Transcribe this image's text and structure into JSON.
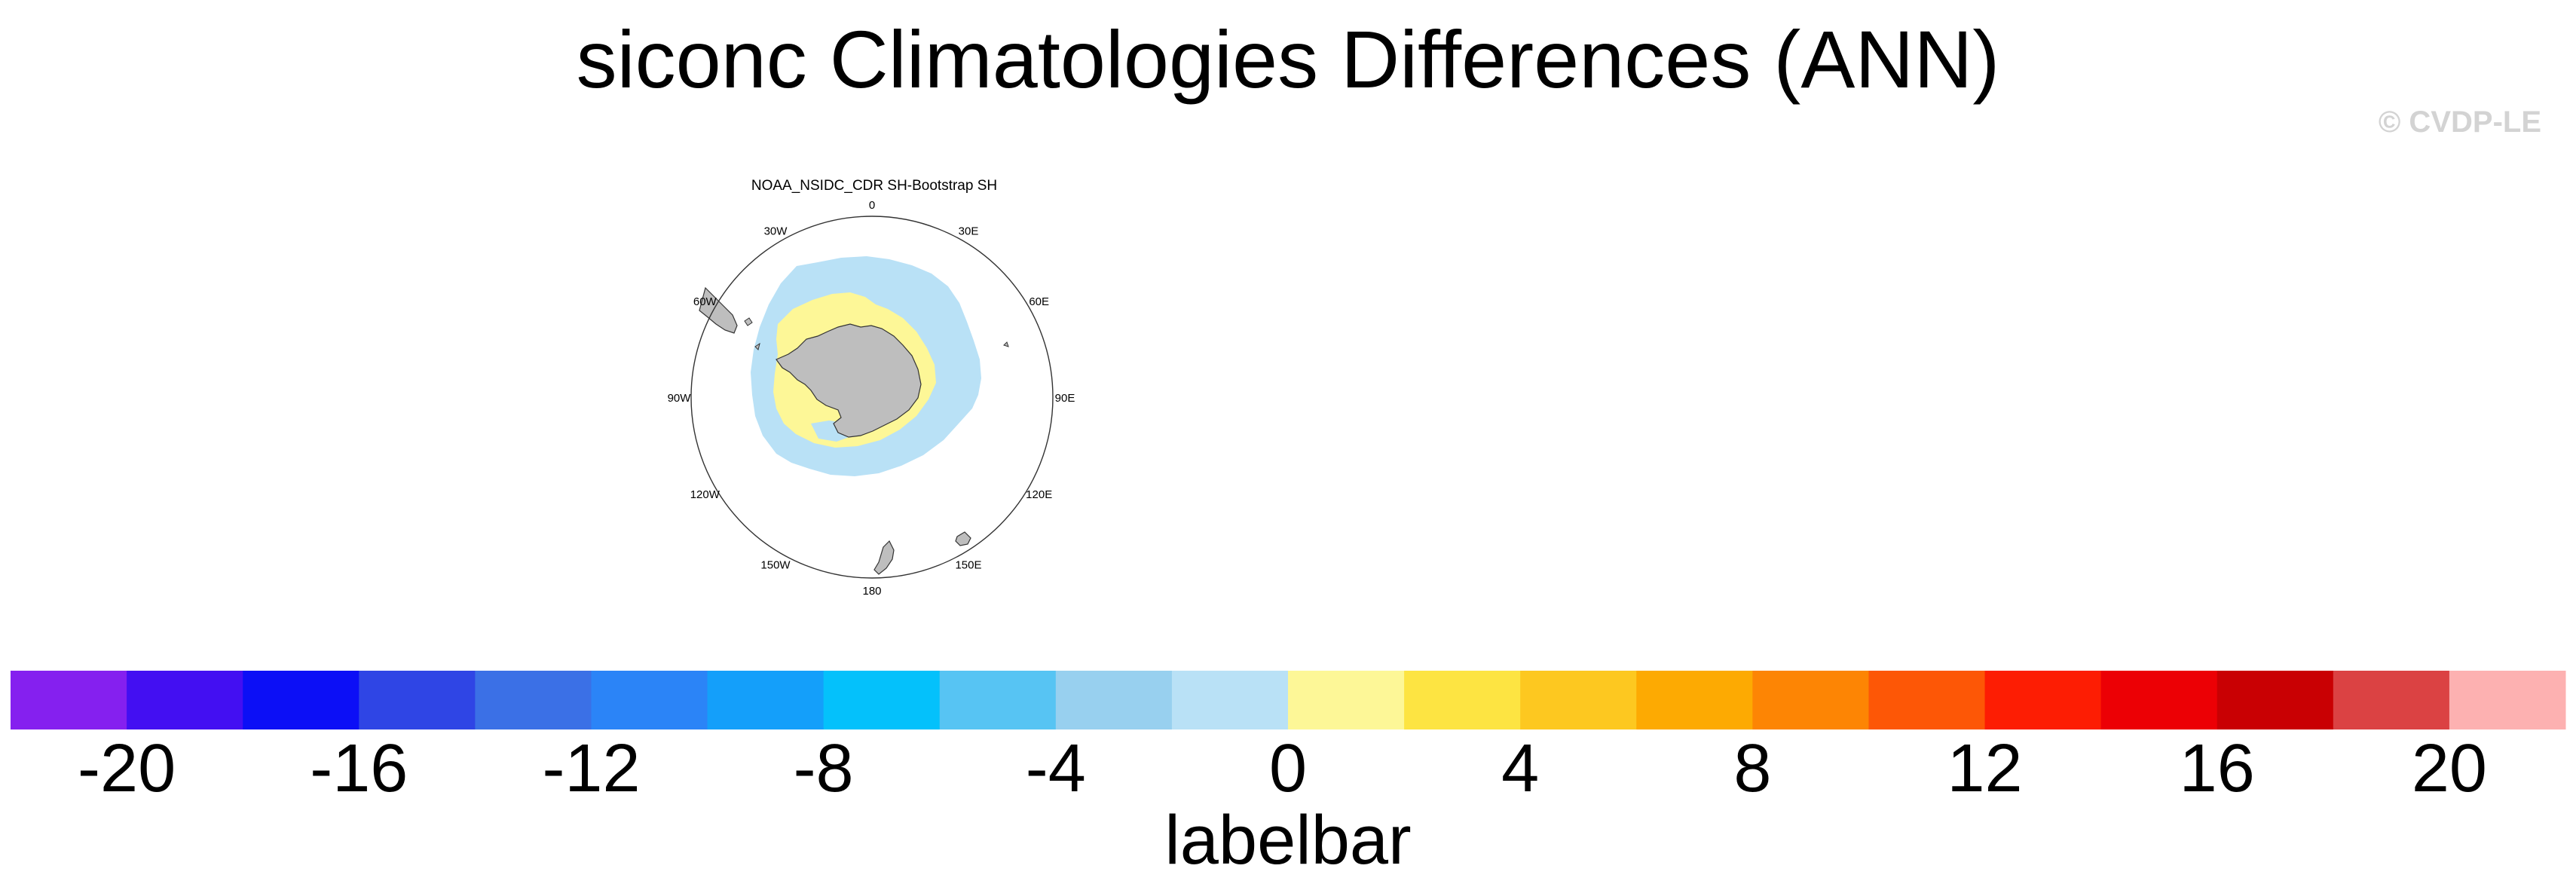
{
  "title": "siconc Climatologies Differences (ANN)",
  "watermark": "© CVDP-LE",
  "panel": {
    "title": "NOAA_NSIDC_CDR SH-Bootstrap SH",
    "longitude_labels": [
      "0",
      "30E",
      "60E",
      "90E",
      "120E",
      "150E",
      "180",
      "150W",
      "120W",
      "90W",
      "60W",
      "30W"
    ],
    "colors": {
      "ice_positive": "#fdf797",
      "ice_negative": "#b9e1f6",
      "land": "#bebebe",
      "land_outline": "#333333"
    }
  },
  "labelbar": {
    "label": "labelbar",
    "tick_labels": [
      "-20",
      "-16",
      "-12",
      "-8",
      "-4",
      "0",
      "4",
      "8",
      "12",
      "16",
      "20"
    ],
    "colors": [
      "#8520ef",
      "#430ff2",
      "#0c0ff6",
      "#2f45e5",
      "#3b70e6",
      "#2b84f7",
      "#149ffa",
      "#04c1fb",
      "#57c4f3",
      "#98d0ef",
      "#b9e1f6",
      "#fdf797",
      "#fde442",
      "#fdc820",
      "#fdaa02",
      "#fd8504",
      "#fd5706",
      "#fd1d03",
      "#ec0005",
      "#c90003",
      "#db4243",
      "#fdb1b1"
    ]
  }
}
